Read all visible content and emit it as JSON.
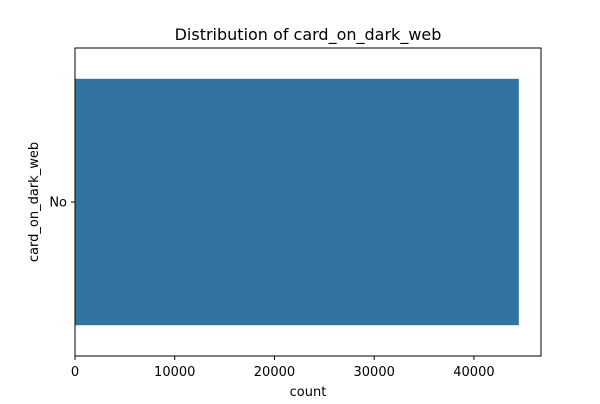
{
  "chart_data": {
    "type": "bar",
    "orientation": "horizontal",
    "title": "Distribution of card_on_dark_web",
    "xlabel": "count",
    "ylabel": "card_on_dark_web",
    "categories": [
      "No"
    ],
    "values": [
      44500
    ],
    "xlim": [
      0,
      46725
    ],
    "xticks": [
      0,
      10000,
      20000,
      30000,
      40000
    ],
    "grid": false,
    "legend": "none",
    "bar_color": "#3274a1"
  }
}
